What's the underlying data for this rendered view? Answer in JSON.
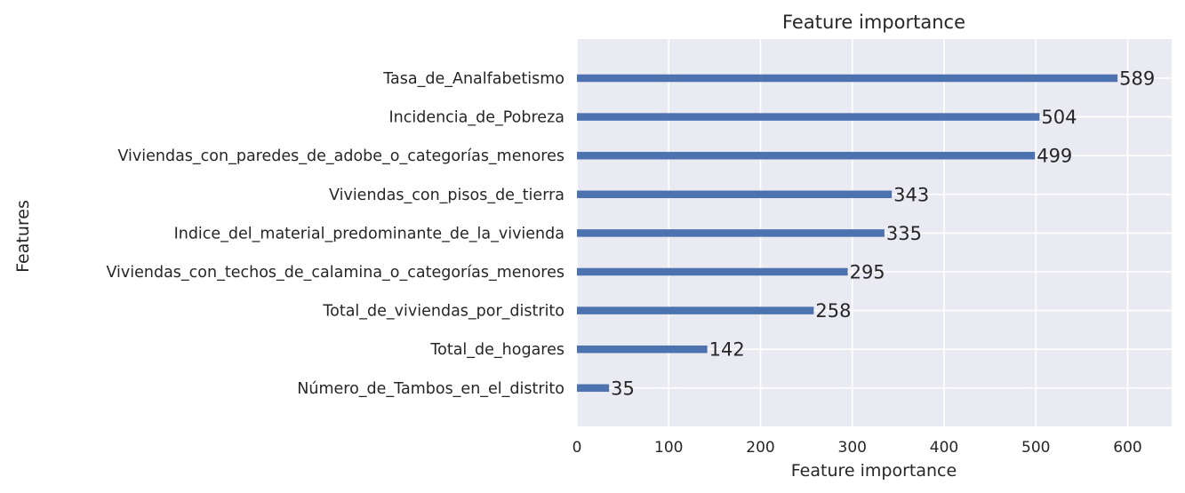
{
  "chart_data": {
    "type": "bar",
    "orientation": "horizontal",
    "title": "Feature importance",
    "xlabel": "Feature importance",
    "ylabel": "Features",
    "xlim": [
      0,
      650
    ],
    "xticks": [
      0,
      100,
      200,
      300,
      400,
      500,
      600
    ],
    "grid": true,
    "categories": [
      "Tasa_de_Analfabetismo",
      "Incidencia_de_Pobreza",
      "Viviendas_con_paredes_de_adobe_o_categorías_menores",
      "Viviendas_con_pisos_de_tierra",
      "Indice_del_material_predominante_de_la_vivienda",
      "Viviendas_con_techos_de_calamina_o_categorías_menores",
      "Total_de_viviendas_por_distrito",
      "Total_de_hogares",
      "Número_de_Tambos_en_el_distrito"
    ],
    "values": [
      589,
      504,
      499,
      343,
      335,
      295,
      258,
      142,
      35
    ],
    "colors": {
      "bar": "#4c72b0",
      "plot_background": "#eaeaf2",
      "grid": "#ffffff"
    }
  }
}
